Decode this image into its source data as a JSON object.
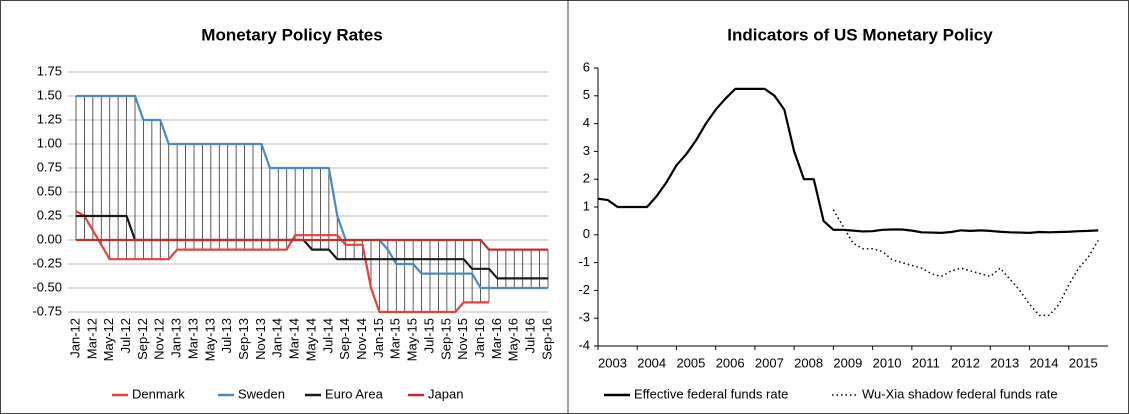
{
  "chart_data": [
    {
      "type": "line",
      "title": "Monetary Policy Rates",
      "categories": [
        "Jan-12",
        null,
        "Mar-12",
        null,
        "May-12",
        null,
        "Jul-12",
        null,
        "Sep-12",
        null,
        "Nov-12",
        null,
        "Jan-13",
        null,
        "Mar-13",
        null,
        "May-13",
        null,
        "Jul-13",
        null,
        "Sep-13",
        null,
        "Nov-13",
        null,
        "Jan-14",
        null,
        "Mar-14",
        null,
        "May-14",
        null,
        "Jul-14",
        null,
        "Sep-14",
        null,
        "Nov-14",
        null,
        "Jan-15",
        null,
        "Mar-15",
        null,
        "May-15",
        null,
        "Jul-15",
        null,
        "Sep-15",
        null,
        "Nov-15",
        null,
        "Jan-16",
        null,
        "Mar-16",
        null,
        "May-16",
        null,
        "Jul-16",
        null,
        "Sep-16"
      ],
      "series": [
        {
          "name": "Denmark",
          "color": "#e8403a",
          "values": [
            0.3,
            0.25,
            0.1,
            -0.05,
            -0.2,
            -0.2,
            -0.2,
            -0.2,
            -0.2,
            -0.2,
            -0.2,
            -0.2,
            -0.1,
            -0.1,
            -0.1,
            -0.1,
            -0.1,
            -0.1,
            -0.1,
            -0.1,
            -0.1,
            -0.1,
            -0.1,
            -0.1,
            -0.1,
            -0.1,
            0.05,
            0.05,
            0.05,
            0.05,
            0.05,
            0.05,
            -0.05,
            -0.05,
            -0.05,
            -0.5,
            -0.75,
            -0.75,
            -0.75,
            -0.75,
            -0.75,
            -0.75,
            -0.75,
            -0.75,
            -0.75,
            -0.75,
            -0.65,
            -0.65,
            -0.65,
            -0.65,
            null,
            null,
            null,
            null,
            null,
            null,
            null
          ]
        },
        {
          "name": "Sweden",
          "color": "#4a8ac4",
          "values": [
            1.5,
            1.5,
            1.5,
            1.5,
            1.5,
            1.5,
            1.5,
            1.5,
            1.25,
            1.25,
            1.25,
            1.0,
            1.0,
            1.0,
            1.0,
            1.0,
            1.0,
            1.0,
            1.0,
            1.0,
            1.0,
            1.0,
            1.0,
            0.75,
            0.75,
            0.75,
            0.75,
            0.75,
            0.75,
            0.75,
            0.75,
            0.25,
            0,
            0,
            0,
            0,
            0,
            -0.1,
            -0.25,
            -0.25,
            -0.25,
            -0.35,
            -0.35,
            -0.35,
            -0.35,
            -0.35,
            -0.35,
            -0.35,
            -0.5,
            -0.5,
            -0.5,
            -0.5,
            -0.5,
            -0.5,
            -0.5,
            -0.5,
            -0.5
          ]
        },
        {
          "name": "Euro Area",
          "color": "#1a1a1a",
          "values": [
            0.25,
            0.25,
            0.25,
            0.25,
            0.25,
            0.25,
            0.25,
            0,
            0,
            0,
            0,
            0,
            0,
            0,
            0,
            0,
            0,
            0,
            0,
            0,
            0,
            0,
            0,
            0,
            0,
            0,
            0,
            0,
            -0.1,
            -0.1,
            -0.1,
            -0.2,
            -0.2,
            -0.2,
            -0.2,
            -0.2,
            -0.2,
            -0.2,
            -0.2,
            -0.2,
            -0.2,
            -0.2,
            -0.2,
            -0.2,
            -0.2,
            -0.2,
            -0.2,
            -0.3,
            -0.3,
            -0.3,
            -0.4,
            -0.4,
            -0.4,
            -0.4,
            -0.4,
            -0.4,
            -0.4
          ]
        },
        {
          "name": "Japan",
          "color": "#c0302a",
          "values": [
            0,
            0,
            0,
            0,
            0,
            0,
            0,
            0,
            0,
            0,
            0,
            0,
            0,
            0,
            0,
            0,
            0,
            0,
            0,
            0,
            0,
            0,
            0,
            0,
            0,
            0,
            0,
            0,
            0,
            0,
            0,
            0,
            0,
            0,
            0,
            0,
            0,
            0,
            0,
            0,
            0,
            0,
            0,
            0,
            0,
            0,
            0,
            0,
            0,
            -0.1,
            -0.1,
            -0.1,
            -0.1,
            -0.1,
            -0.1,
            -0.1,
            -0.1
          ]
        }
      ],
      "ylim": [
        -0.75,
        1.75
      ],
      "yticks": [
        1.75,
        {
          "value": 1.5,
          "label": "1.50"
        },
        1.25,
        {
          "value": 1.0,
          "label": "1.00"
        },
        0.75,
        {
          "value": 0.5,
          "label": "0.50"
        },
        0.25,
        {
          "value": 0,
          "label": "0.00"
        },
        -0.25,
        {
          "value": -0.5,
          "label": "-0.50"
        },
        -0.75
      ],
      "grid": true,
      "high_low_lines": true,
      "legend": "bottom"
    },
    {
      "type": "line",
      "title": "Indicators of US Monetary Policy",
      "x": [
        2003,
        2003.25,
        2003.5,
        2003.75,
        2004,
        2004.25,
        2004.5,
        2004.75,
        2005,
        2005.25,
        2005.5,
        2005.75,
        2006,
        2006.25,
        2006.5,
        2006.75,
        2007,
        2007.25,
        2007.5,
        2007.75,
        2008,
        2008.25,
        2008.5,
        2008.75,
        2009,
        2009.25,
        2009.5,
        2009.75,
        2010,
        2010.25,
        2010.5,
        2010.75,
        2011,
        2011.25,
        2011.5,
        2011.75,
        2012,
        2012.25,
        2012.5,
        2012.75,
        2013,
        2013.25,
        2013.5,
        2013.75,
        2014,
        2014.25,
        2014.5,
        2014.75,
        2015,
        2015.25,
        2015.5,
        2015.75
      ],
      "series": [
        {
          "name": "Effective federal funds rate",
          "color": "#000000",
          "line_style": "solid",
          "values": [
            1.3,
            1.25,
            1.0,
            1.0,
            1.0,
            1.0,
            1.4,
            1.9,
            2.5,
            2.9,
            3.4,
            4.0,
            4.5,
            4.9,
            5.25,
            5.25,
            5.25,
            5.25,
            5.0,
            4.5,
            3.0,
            2.0,
            2.0,
            0.5,
            0.18,
            0.18,
            0.15,
            0.12,
            0.13,
            0.18,
            0.19,
            0.19,
            0.15,
            0.09,
            0.08,
            0.07,
            0.1,
            0.16,
            0.14,
            0.16,
            0.14,
            0.11,
            0.09,
            0.08,
            0.07,
            0.1,
            0.09,
            0.1,
            0.11,
            0.13,
            0.14,
            0.16
          ]
        },
        {
          "name": "Wu-Xia shadow federal funds rate",
          "color": "#000000",
          "line_style": "dotted",
          "values": [
            null,
            null,
            null,
            null,
            null,
            null,
            null,
            null,
            null,
            null,
            null,
            null,
            null,
            null,
            null,
            null,
            null,
            null,
            null,
            null,
            null,
            null,
            null,
            null,
            0.9,
            0.3,
            -0.3,
            -0.5,
            -0.5,
            -0.6,
            -0.9,
            -1.0,
            -1.1,
            -1.2,
            -1.4,
            -1.5,
            -1.3,
            -1.2,
            -1.3,
            -1.4,
            -1.5,
            -1.2,
            -1.6,
            -2.0,
            -2.5,
            -2.9,
            -2.9,
            -2.5,
            -1.8,
            -1.2,
            -0.8,
            -0.2
          ]
        }
      ],
      "xlim": [
        2003,
        2016
      ],
      "xticks": [
        2003,
        2004,
        2005,
        2006,
        2007,
        2008,
        2009,
        2010,
        2011,
        2012,
        2013,
        2014,
        2015
      ],
      "ylim": [
        -4,
        6
      ],
      "yticks": [
        -4,
        -3,
        -2,
        -1,
        0,
        1,
        2,
        3,
        4,
        5,
        6
      ],
      "grid": false,
      "legend": "bottom"
    }
  ]
}
